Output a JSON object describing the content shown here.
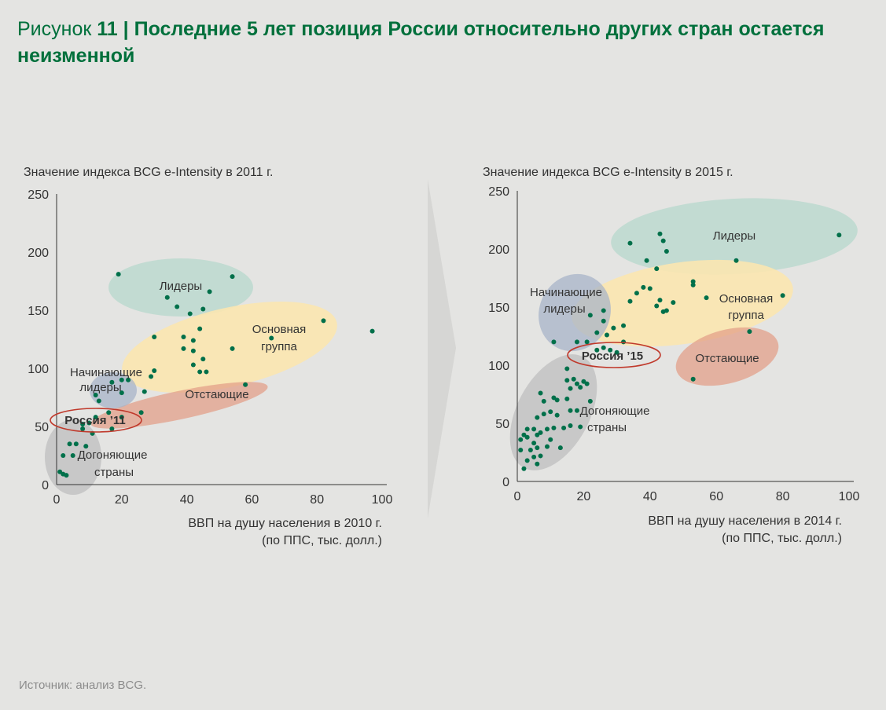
{
  "header": {
    "figure_prefix": "Рисунок",
    "figure_number": "11",
    "separator": "|",
    "title": "Последние 5 лет позиция России относительно других стран остается неизменной"
  },
  "footer": {
    "source": "Источник: анализ BCG."
  },
  "colors": {
    "title": "#00703c",
    "point": "#00704a",
    "leaders": "#bcd9cf",
    "main_group": "#fbe5b0",
    "laggards": "#e3a08a",
    "beginners": "#a8b4c8",
    "catching_up": "#c3c3c3",
    "russia_ring": "#c0392b",
    "arrow": "#d6d6d4"
  },
  "chart_data": [
    {
      "type": "scatter",
      "ylabel": "Значение индекса BCG e-Intensity в 2011 г.",
      "xlabel_line1": "ВВП на душу населения в 2010 г.",
      "xlabel_line2": "(по ППС, тыс. долл.)",
      "xlim": [
        0,
        100
      ],
      "ylim": [
        0,
        250
      ],
      "x_ticks": [
        "0",
        "20",
        "40",
        "60",
        "80",
        "100"
      ],
      "y_ticks": [
        "0",
        "50",
        "100",
        "150",
        "200",
        "250"
      ],
      "group_labels": {
        "leaders": "Лидеры",
        "main_line1": "Основная",
        "main_line2": "группа",
        "laggards": "Отстающие",
        "beginners_line1": "Начинающие",
        "beginners_line2": "лидеры",
        "catching_line1": "Догоняющие",
        "catching_line2": "страны",
        "russia": "Россия ’11"
      },
      "points": [
        [
          19,
          181
        ],
        [
          54,
          179
        ],
        [
          47,
          166
        ],
        [
          34,
          161
        ],
        [
          37,
          153
        ],
        [
          45,
          151
        ],
        [
          41,
          147
        ],
        [
          82,
          141
        ],
        [
          97,
          132
        ],
        [
          44,
          134
        ],
        [
          39,
          127
        ],
        [
          30,
          127
        ],
        [
          42,
          124
        ],
        [
          66,
          126
        ],
        [
          39,
          117
        ],
        [
          54,
          117
        ],
        [
          42,
          115
        ],
        [
          45,
          108
        ],
        [
          42,
          103
        ],
        [
          44,
          97
        ],
        [
          46,
          97
        ],
        [
          30,
          98
        ],
        [
          29,
          93
        ],
        [
          20,
          90
        ],
        [
          22,
          90
        ],
        [
          17,
          88
        ],
        [
          58,
          86
        ],
        [
          27,
          80
        ],
        [
          12,
          77
        ],
        [
          20,
          79
        ],
        [
          13,
          72
        ],
        [
          16,
          62
        ],
        [
          26,
          62
        ],
        [
          12,
          58
        ],
        [
          20,
          58
        ],
        [
          10,
          53
        ],
        [
          8,
          52
        ],
        [
          17,
          48
        ],
        [
          8,
          48
        ],
        [
          11,
          44
        ],
        [
          6,
          35
        ],
        [
          4,
          35
        ],
        [
          9,
          33
        ],
        [
          5,
          25
        ],
        [
          2,
          25
        ],
        [
          1,
          11
        ],
        [
          2,
          9
        ],
        [
          3,
          8
        ]
      ]
    },
    {
      "type": "scatter",
      "ylabel": "Значение индекса BCG e-Intensity в 2015 г.",
      "xlabel_line1": "ВВП на душу населения в 2014 г.",
      "xlabel_line2": "(по ППС, тыс. долл.)",
      "xlim": [
        0,
        100
      ],
      "ylim": [
        0,
        250
      ],
      "x_ticks": [
        "0",
        "20",
        "40",
        "60",
        "80",
        "100"
      ],
      "y_ticks": [
        "0",
        "50",
        "100",
        "150",
        "200",
        "250"
      ],
      "group_labels": {
        "leaders": "Лидеры",
        "main_line1": "Основная",
        "main_line2": "группа",
        "laggards": "Отстающие",
        "beginners_line1": "Начинающие",
        "beginners_line2": "лидеры",
        "catching_line1": "Догоняющие",
        "catching_line2": "страны",
        "russia": "Россия ’15"
      },
      "points": [
        [
          43,
          213
        ],
        [
          97,
          212
        ],
        [
          44,
          207
        ],
        [
          34,
          205
        ],
        [
          45,
          198
        ],
        [
          39,
          190
        ],
        [
          66,
          190
        ],
        [
          42,
          183
        ],
        [
          53,
          172
        ],
        [
          53,
          169
        ],
        [
          38,
          167
        ],
        [
          40,
          166
        ],
        [
          36,
          162
        ],
        [
          34,
          155
        ],
        [
          43,
          156
        ],
        [
          47,
          154
        ],
        [
          57,
          158
        ],
        [
          80,
          160
        ],
        [
          42,
          151
        ],
        [
          45,
          147
        ],
        [
          44,
          146
        ],
        [
          26,
          147
        ],
        [
          22,
          143
        ],
        [
          26,
          138
        ],
        [
          32,
          134
        ],
        [
          29,
          132
        ],
        [
          24,
          128
        ],
        [
          27,
          126
        ],
        [
          70,
          129
        ],
        [
          21,
          120
        ],
        [
          11,
          120
        ],
        [
          18,
          120
        ],
        [
          32,
          120
        ],
        [
          26,
          115
        ],
        [
          24,
          113
        ],
        [
          28,
          113
        ],
        [
          30,
          111
        ],
        [
          53,
          88
        ],
        [
          15,
          97
        ],
        [
          15,
          87
        ],
        [
          17,
          88
        ],
        [
          18,
          84
        ],
        [
          20,
          86
        ],
        [
          21,
          84
        ],
        [
          19,
          81
        ],
        [
          16,
          80
        ],
        [
          7,
          76
        ],
        [
          8,
          69
        ],
        [
          11,
          72
        ],
        [
          12,
          70
        ],
        [
          15,
          71
        ],
        [
          16,
          61
        ],
        [
          18,
          61
        ],
        [
          22,
          69
        ],
        [
          10,
          60
        ],
        [
          12,
          57
        ],
        [
          8,
          58
        ],
        [
          6,
          55
        ],
        [
          16,
          48
        ],
        [
          19,
          47
        ],
        [
          14,
          46
        ],
        [
          11,
          46
        ],
        [
          9,
          45
        ],
        [
          5,
          45
        ],
        [
          3,
          45
        ],
        [
          2,
          40
        ],
        [
          1,
          36
        ],
        [
          3,
          38
        ],
        [
          6,
          40
        ],
        [
          7,
          42
        ],
        [
          10,
          36
        ],
        [
          5,
          33
        ],
        [
          1,
          27
        ],
        [
          4,
          27
        ],
        [
          6,
          29
        ],
        [
          9,
          30
        ],
        [
          13,
          29
        ],
        [
          3,
          18
        ],
        [
          5,
          21
        ],
        [
          7,
          22
        ],
        [
          2,
          11
        ],
        [
          6,
          15
        ]
      ]
    }
  ]
}
